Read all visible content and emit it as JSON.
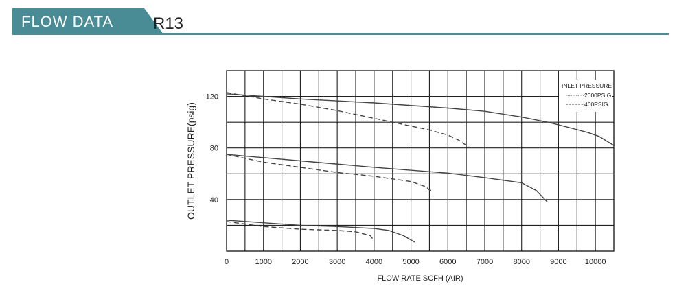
{
  "header": {
    "section_label": "FLOW DATA",
    "model": "R13",
    "accent_color": "#4a8c95"
  },
  "chart_data": {
    "type": "line",
    "title": "",
    "xlabel": "FLOW RATE SCFH (AIR)",
    "ylabel": "OUTLET PRESSURE(psig)",
    "xlim": [
      0,
      10500
    ],
    "ylim": [
      0,
      140
    ],
    "x_ticks": [
      0,
      1000,
      2000,
      3000,
      4000,
      5000,
      6000,
      7000,
      8000,
      9000,
      10000
    ],
    "y_ticks": [
      40,
      80,
      120
    ],
    "grid": true,
    "legend": {
      "title": "INLET PRESSURE",
      "placement": "top-right",
      "entries": [
        {
          "label": "2000PSIG",
          "style": "solid"
        },
        {
          "label": "400PSIG",
          "style": "dashed"
        }
      ]
    },
    "series": [
      {
        "name": "2000PSIG",
        "style": "solid",
        "x": [
          0,
          2000,
          4000,
          6000,
          7000,
          8000,
          8700,
          9000,
          9400,
          9800,
          10100,
          10500
        ],
        "y": [
          122,
          118,
          115,
          111,
          108.5,
          104,
          100,
          98,
          95,
          92,
          89,
          82
        ]
      },
      {
        "name": "400PSIG",
        "style": "dashed",
        "x": [
          0,
          1000,
          2000,
          3000,
          4000,
          5000,
          5500,
          6000,
          6300,
          6600
        ],
        "y": [
          123,
          118,
          114,
          109,
          103,
          97,
          94,
          90,
          86,
          80
        ]
      },
      {
        "name": "2000PSIG",
        "style": "solid",
        "x": [
          0,
          2000,
          4000,
          6000,
          7000,
          8000,
          8400,
          8700
        ],
        "y": [
          75,
          70,
          65,
          60.5,
          57,
          53,
          47,
          38
        ]
      },
      {
        "name": "400PSIG",
        "style": "dashed",
        "x": [
          0,
          1000,
          2000,
          3000,
          4000,
          5000,
          5400,
          5600
        ],
        "y": [
          75,
          69,
          65,
          61,
          58,
          54,
          50,
          45
        ]
      },
      {
        "name": "2000PSIG",
        "style": "solid",
        "x": [
          0,
          1000,
          2000,
          3000,
          4000,
          4400,
          4800,
          5100
        ],
        "y": [
          24,
          22,
          20,
          19,
          17.5,
          16,
          12,
          7
        ]
      },
      {
        "name": "400PSIG",
        "style": "dashed",
        "x": [
          0,
          1000,
          2000,
          3000,
          3500,
          3900,
          4000
        ],
        "y": [
          23,
          19,
          17,
          16,
          15,
          12,
          8
        ]
      }
    ]
  }
}
